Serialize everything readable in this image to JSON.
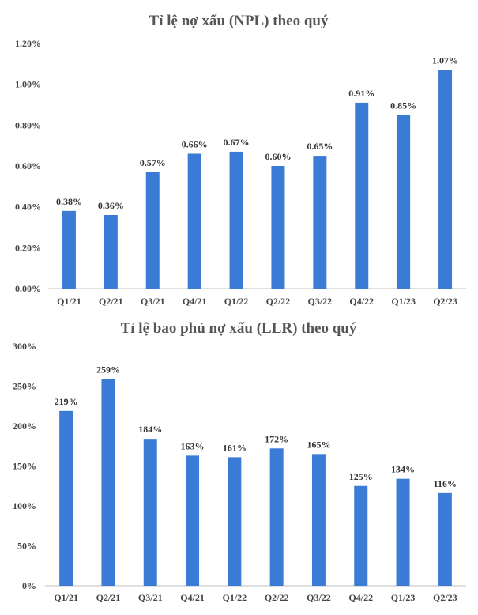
{
  "colors": {
    "bar": "#3a7bd5",
    "axis": "#bfbfbf",
    "text": "#444444",
    "title": "#555555"
  },
  "chart_data": [
    {
      "type": "bar",
      "title": "Tỉ lệ nợ xấu (NPL) theo quý",
      "categories": [
        "Q1/21",
        "Q2/21",
        "Q3/21",
        "Q4/21",
        "Q1/22",
        "Q2/22",
        "Q3/22",
        "Q4/22",
        "Q1/23",
        "Q2/23"
      ],
      "values": [
        0.38,
        0.36,
        0.57,
        0.66,
        0.67,
        0.6,
        0.65,
        0.91,
        0.85,
        1.07
      ],
      "data_labels": [
        "0.38%",
        "0.36%",
        "0.57%",
        "0.66%",
        "0.67%",
        "0.60%",
        "0.65%",
        "0.91%",
        "0.85%",
        "1.07%"
      ],
      "y_ticks": [
        0,
        0.2,
        0.4,
        0.6,
        0.8,
        1.0,
        1.2
      ],
      "y_tick_labels": [
        "0.00%",
        "0.20%",
        "0.40%",
        "0.60%",
        "0.80%",
        "1.00%",
        "1.20%"
      ],
      "ylim": [
        0,
        1.2
      ],
      "grid": false,
      "legend": "none"
    },
    {
      "type": "bar",
      "title": "Tỉ lệ bao phủ nợ xấu (LLR) theo quý",
      "categories": [
        "Q1/21",
        "Q2/21",
        "Q3/21",
        "Q4/21",
        "Q1/22",
        "Q2/22",
        "Q3/22",
        "Q4/22",
        "Q1/23",
        "Q2/23"
      ],
      "values": [
        219,
        259,
        184,
        163,
        161,
        172,
        165,
        125,
        134,
        116
      ],
      "data_labels": [
        "219%",
        "259%",
        "184%",
        "163%",
        "161%",
        "172%",
        "165%",
        "125%",
        "134%",
        "116%"
      ],
      "y_ticks": [
        0,
        50,
        100,
        150,
        200,
        250,
        300
      ],
      "y_tick_labels": [
        "0%",
        "50%",
        "100%",
        "150%",
        "200%",
        "250%",
        "300%"
      ],
      "ylim": [
        0,
        300
      ],
      "grid": false,
      "legend": "none"
    }
  ]
}
